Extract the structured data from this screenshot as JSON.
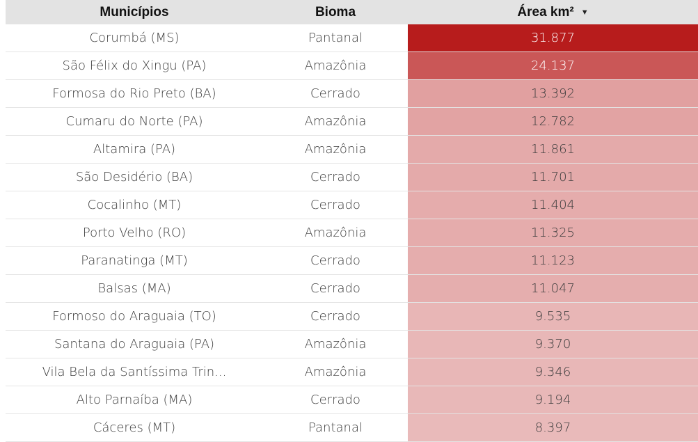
{
  "table": {
    "headers": {
      "municipios": "Municípios",
      "bioma": "Bioma",
      "area": "Área km²"
    },
    "sort_icon": "caret-down-icon",
    "rows": [
      {
        "municipio": "Corumbá (MS)",
        "bioma": "Pantanal",
        "area": "31.877",
        "value": 31877
      },
      {
        "municipio": "São Félix do Xingu (PA)",
        "bioma": "Amazônia",
        "area": "24.137",
        "value": 24137
      },
      {
        "municipio": "Formosa do Rio Preto (BA)",
        "bioma": "Cerrado",
        "area": "13.392",
        "value": 13392
      },
      {
        "municipio": "Cumaru do Norte (PA)",
        "bioma": "Amazônia",
        "area": "12.782",
        "value": 12782
      },
      {
        "municipio": "Altamira (PA)",
        "bioma": "Amazônia",
        "area": "11.861",
        "value": 11861
      },
      {
        "municipio": "São Desidério (BA)",
        "bioma": "Cerrado",
        "area": "11.701",
        "value": 11701
      },
      {
        "municipio": "Cocalinho (MT)",
        "bioma": "Cerrado",
        "area": "11.404",
        "value": 11404
      },
      {
        "municipio": "Porto Velho (RO)",
        "bioma": "Amazônia",
        "area": "11.325",
        "value": 11325
      },
      {
        "municipio": "Paranatinga (MT)",
        "bioma": "Cerrado",
        "area": "11.123",
        "value": 11123
      },
      {
        "municipio": "Balsas (MA)",
        "bioma": "Cerrado",
        "area": "11.047",
        "value": 11047
      },
      {
        "municipio": "Formoso do Araguaia (TO)",
        "bioma": "Cerrado",
        "area": "9.535",
        "value": 9535
      },
      {
        "municipio": "Santana do Araguaia (PA)",
        "bioma": "Amazônia",
        "area": "9.370",
        "value": 9370
      },
      {
        "municipio": "Vila Bela da Santíssima Trin...",
        "bioma": "Amazônia",
        "area": "9.346",
        "value": 9346
      },
      {
        "municipio": "Alto Parnaíba (MA)",
        "bioma": "Cerrado",
        "area": "9.194",
        "value": 9194
      },
      {
        "municipio": "Cáceres (MT)",
        "bioma": "Pantanal",
        "area": "8.397",
        "value": 8397
      }
    ]
  },
  "chart_data": {
    "type": "table",
    "columns": [
      "Municípios",
      "Bioma",
      "Área km²"
    ],
    "rows": [
      [
        "Corumbá (MS)",
        "Pantanal",
        31877
      ],
      [
        "São Félix do Xingu (PA)",
        "Amazônia",
        24137
      ],
      [
        "Formosa do Rio Preto (BA)",
        "Cerrado",
        13392
      ],
      [
        "Cumaru do Norte (PA)",
        "Amazônia",
        12782
      ],
      [
        "Altamira (PA)",
        "Amazônia",
        11861
      ],
      [
        "São Desidério (BA)",
        "Cerrado",
        11701
      ],
      [
        "Cocalinho (MT)",
        "Cerrado",
        11404
      ],
      [
        "Porto Velho (RO)",
        "Amazônia",
        11325
      ],
      [
        "Paranatinga (MT)",
        "Cerrado",
        11123
      ],
      [
        "Balsas (MA)",
        "Cerrado",
        11047
      ],
      [
        "Formoso do Araguaia (TO)",
        "Cerrado",
        9535
      ],
      [
        "Santana do Araguaia (PA)",
        "Amazônia",
        9370
      ],
      [
        "Vila Bela da Santíssima Trin...",
        "Amazônia",
        9346
      ],
      [
        "Alto Parnaíba (MA)",
        "Cerrado",
        9194
      ],
      [
        "Cáceres (MT)",
        "Pantanal",
        8397
      ]
    ],
    "heatmap_color": "#b71c1c"
  }
}
